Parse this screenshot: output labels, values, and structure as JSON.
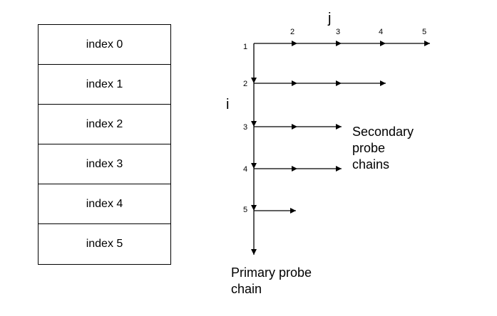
{
  "index_table": {
    "rows": [
      "index 0",
      "index 1",
      "index 2",
      "index 3",
      "index 4",
      "index 5"
    ]
  },
  "diagram": {
    "axis_i": "i",
    "axis_j": "j",
    "row_labels": [
      "1",
      "2",
      "3",
      "4",
      "5"
    ],
    "column_labels": [
      "2",
      "3",
      "4",
      "5"
    ],
    "secondary_label_lines": [
      "Secondary",
      "probe",
      "chains"
    ],
    "primary_label_lines": [
      "Primary probe",
      "chain"
    ]
  }
}
